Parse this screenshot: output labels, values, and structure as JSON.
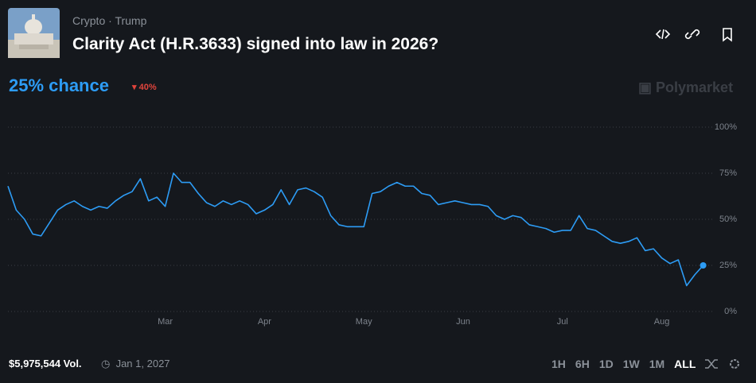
{
  "header": {
    "tags": [
      "Crypto",
      "Trump"
    ],
    "title": "Clarity Act (H.R.3633) signed into law in 2026?",
    "chance": "25% chance",
    "change": "40%",
    "brand": "Polymarket"
  },
  "chart_data": {
    "type": "line",
    "categories": [
      null,
      null,
      null,
      null,
      null,
      null,
      null,
      null,
      null,
      null,
      null,
      null,
      null,
      null,
      null,
      null,
      null,
      null,
      null,
      "Mar",
      null,
      null,
      null,
      null,
      null,
      null,
      null,
      null,
      null,
      null,
      null,
      "Apr",
      null,
      null,
      null,
      null,
      null,
      null,
      null,
      null,
      null,
      null,
      null,
      "May",
      null,
      null,
      null,
      null,
      null,
      null,
      null,
      null,
      null,
      null,
      null,
      "Jun",
      null,
      null,
      null,
      null,
      null,
      null,
      null,
      null,
      null,
      null,
      null,
      "Jul",
      null,
      null,
      null,
      null,
      null,
      null,
      null,
      null,
      null,
      null,
      null,
      "Aug",
      null,
      null,
      null,
      null,
      null
    ],
    "series": [
      {
        "color": "#2d9cf5",
        "values": [
          68,
          55,
          50,
          42,
          41,
          48,
          55,
          58,
          60,
          57,
          55,
          57,
          56,
          60,
          63,
          65,
          72,
          60,
          62,
          57,
          75,
          70,
          70,
          64,
          59,
          57,
          60,
          58,
          60,
          58,
          53,
          55,
          58,
          66,
          58,
          66,
          67,
          65,
          62,
          52,
          47,
          46,
          46,
          46,
          64,
          65,
          68,
          70,
          68,
          68,
          64,
          63,
          58,
          59,
          60,
          59,
          58,
          58,
          57,
          52,
          50,
          52,
          51,
          47,
          46,
          45,
          43,
          44,
          44,
          52,
          45,
          44,
          41,
          38,
          37,
          38,
          40,
          33,
          34,
          29,
          26,
          28,
          14,
          20,
          25
        ]
      }
    ],
    "ylim": [
      0,
      100
    ],
    "yticks": [
      {
        "value": 0,
        "label": "0%"
      },
      {
        "value": 25,
        "label": "25%"
      },
      {
        "value": 50,
        "label": "50%"
      },
      {
        "value": 75,
        "label": "75%"
      },
      {
        "value": 100,
        "label": "100%"
      }
    ],
    "grid": true
  },
  "footer": {
    "volume": "$5,975,544 Vol.",
    "end_date": "Jan 1, 2027",
    "ranges": [
      "1H",
      "6H",
      "1D",
      "1W",
      "1M",
      "ALL"
    ]
  }
}
